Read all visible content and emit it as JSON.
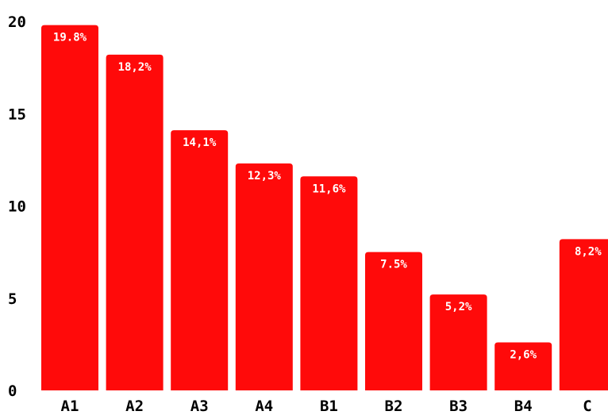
{
  "chart_data": {
    "type": "bar",
    "title": "",
    "xlabel": "",
    "ylabel": "",
    "categories": [
      "A1",
      "A2",
      "A3",
      "A4",
      "B1",
      "B2",
      "B3",
      "B4",
      "C"
    ],
    "values": [
      19.8,
      18.2,
      14.1,
      12.3,
      11.6,
      7.5,
      5.2,
      2.6,
      8.2
    ],
    "data_labels": [
      "19.8%",
      "18,2%",
      "14,1%",
      "12,3%",
      "11,6%",
      "7.5%",
      "5,2%",
      "2,6%",
      "8,2%"
    ],
    "ylim": [
      0,
      20
    ],
    "yticks": [
      0,
      5,
      10,
      15,
      20
    ],
    "grid": false,
    "legend": "none",
    "bar_color": "#ff0a0a",
    "label_color": "#ffffff",
    "axis_text_color": "#000000"
  }
}
